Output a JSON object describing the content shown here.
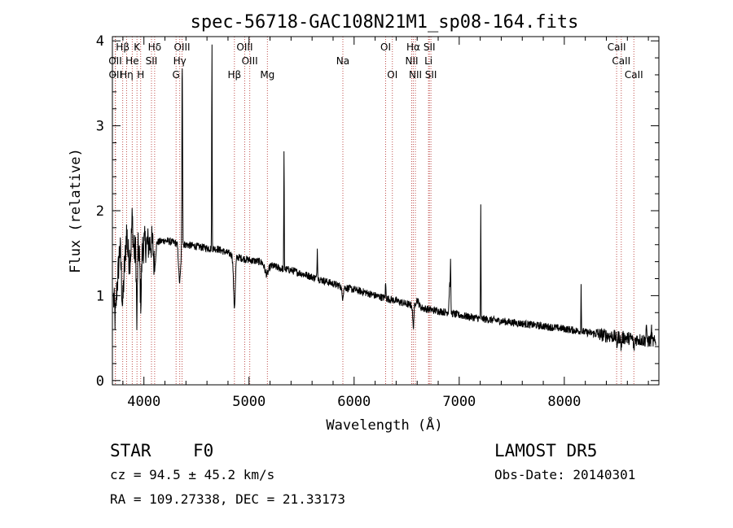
{
  "chart_data": {
    "type": "line",
    "title": "spec-56718-GAC108N21M1_sp08-164.fits",
    "xlabel": "Wavelength (Å)",
    "ylabel": "Flux (relative)",
    "xlim": [
      3700,
      8900
    ],
    "ylim": [
      -0.05,
      4.05
    ],
    "x_ticks": [
      4000,
      5000,
      6000,
      7000,
      8000
    ],
    "y_ticks": [
      0,
      1,
      2,
      3,
      4
    ],
    "grid": false,
    "line_color": "#000000",
    "marker_color": "#c0504d",
    "continuum": [
      [
        3710,
        1.0
      ],
      [
        3750,
        1.2
      ],
      [
        3800,
        1.3
      ],
      [
        3850,
        1.45
      ],
      [
        3900,
        1.5
      ],
      [
        3950,
        1.55
      ],
      [
        4000,
        1.6
      ],
      [
        4100,
        1.62
      ],
      [
        4200,
        1.65
      ],
      [
        4300,
        1.62
      ],
      [
        4400,
        1.6
      ],
      [
        4500,
        1.58
      ],
      [
        4600,
        1.56
      ],
      [
        4700,
        1.55
      ],
      [
        4800,
        1.5
      ],
      [
        4900,
        1.45
      ],
      [
        5000,
        1.42
      ],
      [
        5100,
        1.4
      ],
      [
        5200,
        1.36
      ],
      [
        5300,
        1.32
      ],
      [
        5400,
        1.3
      ],
      [
        5500,
        1.26
      ],
      [
        5600,
        1.22
      ],
      [
        5700,
        1.18
      ],
      [
        5800,
        1.14
      ],
      [
        5900,
        1.1
      ],
      [
        6000,
        1.07
      ],
      [
        6100,
        1.04
      ],
      [
        6200,
        1.0
      ],
      [
        6300,
        0.97
      ],
      [
        6400,
        0.94
      ],
      [
        6500,
        0.9
      ],
      [
        6600,
        0.87
      ],
      [
        6700,
        0.84
      ],
      [
        6800,
        0.82
      ],
      [
        6900,
        0.8
      ],
      [
        7000,
        0.77
      ],
      [
        7200,
        0.73
      ],
      [
        7400,
        0.7
      ],
      [
        7600,
        0.67
      ],
      [
        7800,
        0.64
      ],
      [
        8000,
        0.61
      ],
      [
        8200,
        0.57
      ],
      [
        8400,
        0.53
      ],
      [
        8600,
        0.5
      ],
      [
        8800,
        0.47
      ],
      [
        8870,
        0.45
      ]
    ],
    "features": [
      [
        3728,
        -0.35,
        12
      ],
      [
        3770,
        0.3,
        12
      ],
      [
        3798,
        -0.4,
        10
      ],
      [
        3835,
        0.35,
        10
      ],
      [
        3889,
        0.4,
        10
      ],
      [
        3933,
        -0.9,
        6
      ],
      [
        3970,
        -0.6,
        10
      ],
      [
        4102,
        -0.3,
        12
      ],
      [
        4340,
        -0.45,
        14
      ],
      [
        4363,
        1.9,
        3
      ],
      [
        4367,
        1.4,
        3
      ],
      [
        4647,
        2.45,
        3
      ],
      [
        4861,
        -0.6,
        12
      ],
      [
        5168,
        -0.12,
        25
      ],
      [
        5333,
        1.4,
        3
      ],
      [
        5650,
        0.35,
        4
      ],
      [
        5890,
        -0.12,
        10
      ],
      [
        6300,
        0.18,
        4
      ],
      [
        6563,
        -0.25,
        8
      ],
      [
        6600,
        0.08,
        20
      ],
      [
        6910,
        0.35,
        8
      ],
      [
        6918,
        0.55,
        3
      ],
      [
        7205,
        1.32,
        3
      ],
      [
        8160,
        0.55,
        3
      ],
      [
        8500,
        -0.1,
        6
      ],
      [
        8542,
        -0.12,
        6
      ],
      [
        8662,
        -0.12,
        6
      ],
      [
        8780,
        0.2,
        4
      ],
      [
        8830,
        0.15,
        4
      ]
    ],
    "lines": [
      {
        "label": "Hβ",
        "wl": 3798,
        "row": 0
      },
      {
        "label": "K",
        "wl": 3934,
        "row": 0
      },
      {
        "label": "Hδ",
        "wl": 4102,
        "row": 0
      },
      {
        "label": "OIII",
        "wl": 4363,
        "row": 0
      },
      {
        "label": "OIII",
        "wl": 4959,
        "row": 0
      },
      {
        "label": "OI",
        "wl": 6300,
        "row": 0
      },
      {
        "label": "Hα",
        "wl": 6563,
        "row": 0
      },
      {
        "label": "SII",
        "wl": 6716,
        "row": 0
      },
      {
        "label": "CaII",
        "wl": 8498,
        "row": 0
      },
      {
        "label": "OII",
        "wl": 3727,
        "row": 1
      },
      {
        "label": "He",
        "wl": 3889,
        "row": 1
      },
      {
        "label": "SII",
        "wl": 4072,
        "row": 1
      },
      {
        "label": "Hγ",
        "wl": 4341,
        "row": 1
      },
      {
        "label": "OIII",
        "wl": 5007,
        "row": 1
      },
      {
        "label": "Na",
        "wl": 5893,
        "row": 1
      },
      {
        "label": "NII",
        "wl": 6548,
        "row": 1
      },
      {
        "label": "Li",
        "wl": 6708,
        "row": 1
      },
      {
        "label": "CaII",
        "wl": 8542,
        "row": 1
      },
      {
        "label": "OII",
        "wl": 3729,
        "row": 2
      },
      {
        "label": "Hη",
        "wl": 3835,
        "row": 2
      },
      {
        "label": "H",
        "wl": 3969,
        "row": 2
      },
      {
        "label": "G",
        "wl": 4306,
        "row": 2
      },
      {
        "label": "Hβ",
        "wl": 4861,
        "row": 2
      },
      {
        "label": "Mg",
        "wl": 5175,
        "row": 2
      },
      {
        "label": "OI",
        "wl": 6364,
        "row": 2
      },
      {
        "label": "NII",
        "wl": 6583,
        "row": 2
      },
      {
        "label": "SII",
        "wl": 6731,
        "row": 2
      },
      {
        "label": "CaII",
        "wl": 8662,
        "row": 2
      }
    ]
  },
  "info": {
    "class": "STAR",
    "subclass": "F0",
    "survey": "LAMOST DR5",
    "cz": "cz = 94.5 ± 45.2 km/s",
    "obsdate": "Obs-Date: 20140301",
    "coords": "RA = 109.27338, DEC =  21.33173"
  }
}
